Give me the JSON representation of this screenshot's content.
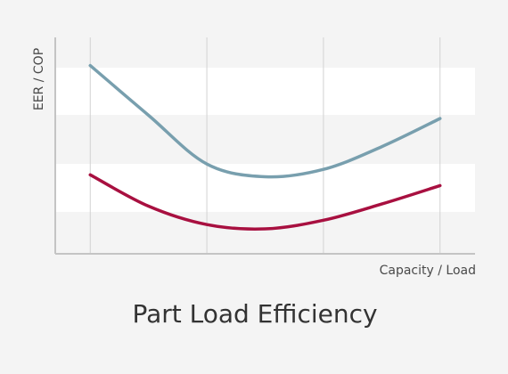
{
  "chart_data": {
    "type": "line",
    "title": "Part Load Efficiency",
    "xlabel": "Capacity / Load",
    "ylabel": "EER / COP",
    "x": [
      0,
      1,
      2,
      3
    ],
    "xlim": [
      -0.3,
      3.3
    ],
    "ylim": [
      0,
      100
    ],
    "grid": true,
    "series": [
      {
        "color": "#789fae",
        "x": [
          0,
          0.5,
          1,
          1.5,
          2,
          2.5,
          3
        ],
        "values": [
          87,
          64,
          41.5,
          35.6,
          39,
          49.5,
          62.5
        ]
      },
      {
        "color": "#a81040",
        "x": [
          0,
          0.5,
          1,
          1.5,
          2,
          2.5,
          3
        ],
        "values": [
          36.5,
          22,
          13.5,
          11.5,
          15.5,
          23,
          31.5
        ]
      }
    ]
  }
}
